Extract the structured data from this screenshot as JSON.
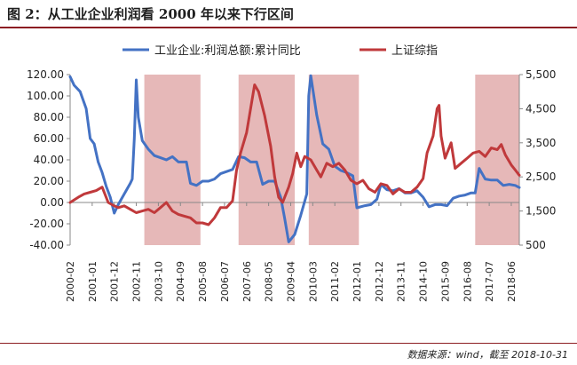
{
  "header": {
    "title": "图 2：从工业企业利润看 2000 年以来下行区间"
  },
  "footer": {
    "source": "数据来源：wind，截至 2018-10-31"
  },
  "colors": {
    "series1": "#4472c4",
    "series2": "#c0393b",
    "shade": "#e6b8b8",
    "rule": "#8c1d22"
  },
  "chart_data": {
    "type": "line",
    "title": "从工业企业利润看 2000 年以来下行区间",
    "x_axis": {
      "start": "2000-02",
      "end": "2018-10",
      "tick_labels": [
        "2000-02",
        "2001-01",
        "2001-12",
        "2002-11",
        "2003-10",
        "2004-09",
        "2005-08",
        "2006-07",
        "2007-06",
        "2008-05",
        "2009-04",
        "2010-03",
        "2011-02",
        "2012-01",
        "2012-12",
        "2013-11",
        "2014-10",
        "2015-09",
        "2016-08",
        "2017-07",
        "2018-06"
      ]
    },
    "y_left": {
      "min": -40,
      "max": 120,
      "step": 20,
      "tick_labels": [
        "-40.00",
        "-20.00",
        "0.00",
        "20.00",
        "40.00",
        "60.00",
        "80.00",
        "100.00",
        "120.00"
      ]
    },
    "y_right": {
      "min": 500,
      "max": 5500,
      "step": 1000,
      "tick_labels": [
        "500",
        "1,500",
        "2,500",
        "3,500",
        "4,500",
        "5,500"
      ]
    },
    "shaded_periods": [
      {
        "start": "2003-03",
        "end": "2005-07"
      },
      {
        "start": "2007-02",
        "end": "2009-06"
      },
      {
        "start": "2010-01",
        "end": "2012-02"
      },
      {
        "start": "2016-12",
        "end": "2018-10"
      }
    ],
    "series": [
      {
        "name": "工业企业:利润总额:累计同比",
        "axis": "left",
        "points": [
          [
            "2000-02",
            118
          ],
          [
            "2000-04",
            110
          ],
          [
            "2000-07",
            104
          ],
          [
            "2000-10",
            88
          ],
          [
            "2000-12",
            60
          ],
          [
            "2001-02",
            55
          ],
          [
            "2001-04",
            38
          ],
          [
            "2001-06",
            28
          ],
          [
            "2001-08",
            15
          ],
          [
            "2001-10",
            5
          ],
          [
            "2001-12",
            -10
          ],
          [
            "2002-02",
            -2
          ],
          [
            "2002-05",
            8
          ],
          [
            "2002-08",
            18
          ],
          [
            "2002-09",
            22
          ],
          [
            "2002-10",
            60
          ],
          [
            "2002-11",
            115
          ],
          [
            "2002-12",
            80
          ],
          [
            "2003-02",
            58
          ],
          [
            "2003-05",
            50
          ],
          [
            "2003-08",
            44
          ],
          [
            "2003-11",
            42
          ],
          [
            "2004-02",
            40
          ],
          [
            "2004-05",
            43
          ],
          [
            "2004-08",
            38
          ],
          [
            "2004-10",
            38
          ],
          [
            "2004-12",
            38
          ],
          [
            "2005-02",
            18
          ],
          [
            "2005-05",
            16
          ],
          [
            "2005-08",
            20
          ],
          [
            "2005-11",
            20
          ],
          [
            "2006-02",
            22
          ],
          [
            "2006-05",
            27
          ],
          [
            "2006-08",
            29
          ],
          [
            "2006-11",
            31
          ],
          [
            "2007-02",
            43
          ],
          [
            "2007-05",
            42
          ],
          [
            "2007-08",
            38
          ],
          [
            "2007-11",
            38
          ],
          [
            "2008-02",
            17
          ],
          [
            "2008-05",
            20
          ],
          [
            "2008-08",
            20
          ],
          [
            "2008-11",
            5
          ],
          [
            "2009-01",
            -15
          ],
          [
            "2009-03",
            -37
          ],
          [
            "2009-06",
            -30
          ],
          [
            "2009-09",
            -12
          ],
          [
            "2009-12",
            8
          ],
          [
            "2010-01",
            100
          ],
          [
            "2010-02",
            119
          ],
          [
            "2010-05",
            82
          ],
          [
            "2010-08",
            55
          ],
          [
            "2010-11",
            50
          ],
          [
            "2011-02",
            34
          ],
          [
            "2011-05",
            30
          ],
          [
            "2011-08",
            28
          ],
          [
            "2011-11",
            25
          ],
          [
            "2012-01",
            -5
          ],
          [
            "2012-05",
            -3
          ],
          [
            "2012-08",
            -2
          ],
          [
            "2012-11",
            3
          ],
          [
            "2013-01",
            17
          ],
          [
            "2013-04",
            12
          ],
          [
            "2013-07",
            11
          ],
          [
            "2013-10",
            13
          ],
          [
            "2014-01",
            9
          ],
          [
            "2014-04",
            9
          ],
          [
            "2014-07",
            11
          ],
          [
            "2014-10",
            5
          ],
          [
            "2015-01",
            -4
          ],
          [
            "2015-04",
            -2
          ],
          [
            "2015-07",
            -2
          ],
          [
            "2015-10",
            -3
          ],
          [
            "2016-01",
            4
          ],
          [
            "2016-04",
            6
          ],
          [
            "2016-07",
            7
          ],
          [
            "2016-10",
            9
          ],
          [
            "2016-12",
            9
          ],
          [
            "2017-02",
            32
          ],
          [
            "2017-05",
            22
          ],
          [
            "2017-08",
            21
          ],
          [
            "2017-11",
            21
          ],
          [
            "2018-02",
            16
          ],
          [
            "2018-05",
            17
          ],
          [
            "2018-08",
            16
          ],
          [
            "2018-10",
            14
          ]
        ]
      },
      {
        "name": "上证综指",
        "axis": "right",
        "points": [
          [
            "2000-02",
            1750
          ],
          [
            "2000-06",
            1900
          ],
          [
            "2000-09",
            2000
          ],
          [
            "2000-12",
            2050
          ],
          [
            "2001-03",
            2100
          ],
          [
            "2001-06",
            2200
          ],
          [
            "2001-09",
            1750
          ],
          [
            "2001-12",
            1650
          ],
          [
            "2002-02",
            1600
          ],
          [
            "2002-05",
            1650
          ],
          [
            "2002-08",
            1550
          ],
          [
            "2002-11",
            1450
          ],
          [
            "2003-02",
            1500
          ],
          [
            "2003-05",
            1550
          ],
          [
            "2003-08",
            1450
          ],
          [
            "2003-11",
            1600
          ],
          [
            "2004-02",
            1750
          ],
          [
            "2004-05",
            1500
          ],
          [
            "2004-08",
            1400
          ],
          [
            "2004-11",
            1350
          ],
          [
            "2005-02",
            1300
          ],
          [
            "2005-05",
            1150
          ],
          [
            "2005-08",
            1150
          ],
          [
            "2005-11",
            1100
          ],
          [
            "2006-02",
            1300
          ],
          [
            "2006-05",
            1600
          ],
          [
            "2006-08",
            1600
          ],
          [
            "2006-11",
            1800
          ],
          [
            "2007-01",
            2700
          ],
          [
            "2007-03",
            3200
          ],
          [
            "2007-06",
            3800
          ],
          [
            "2007-08",
            4500
          ],
          [
            "2007-10",
            5200
          ],
          [
            "2007-12",
            5000
          ],
          [
            "2008-03",
            4300
          ],
          [
            "2008-06",
            3400
          ],
          [
            "2008-08",
            2500
          ],
          [
            "2008-10",
            1900
          ],
          [
            "2008-12",
            1750
          ],
          [
            "2009-03",
            2200
          ],
          [
            "2009-05",
            2600
          ],
          [
            "2009-07",
            3200
          ],
          [
            "2009-09",
            2800
          ],
          [
            "2009-11",
            3100
          ],
          [
            "2010-02",
            3000
          ],
          [
            "2010-05",
            2700
          ],
          [
            "2010-07",
            2500
          ],
          [
            "2010-10",
            2900
          ],
          [
            "2011-01",
            2800
          ],
          [
            "2011-04",
            2900
          ],
          [
            "2011-07",
            2700
          ],
          [
            "2011-10",
            2400
          ],
          [
            "2012-01",
            2300
          ],
          [
            "2012-04",
            2400
          ],
          [
            "2012-07",
            2150
          ],
          [
            "2012-10",
            2050
          ],
          [
            "2013-01",
            2300
          ],
          [
            "2013-04",
            2250
          ],
          [
            "2013-07",
            2000
          ],
          [
            "2013-10",
            2150
          ],
          [
            "2014-01",
            2050
          ],
          [
            "2014-04",
            2050
          ],
          [
            "2014-07",
            2200
          ],
          [
            "2014-10",
            2450
          ],
          [
            "2014-12",
            3200
          ],
          [
            "2015-03",
            3700
          ],
          [
            "2015-05",
            4500
          ],
          [
            "2015-06",
            4600
          ],
          [
            "2015-07",
            3700
          ],
          [
            "2015-09",
            3050
          ],
          [
            "2015-12",
            3500
          ],
          [
            "2016-02",
            2750
          ],
          [
            "2016-05",
            2900
          ],
          [
            "2016-08",
            3050
          ],
          [
            "2016-11",
            3200
          ],
          [
            "2017-02",
            3250
          ],
          [
            "2017-05",
            3100
          ],
          [
            "2017-08",
            3350
          ],
          [
            "2017-11",
            3300
          ],
          [
            "2018-01",
            3450
          ],
          [
            "2018-03",
            3150
          ],
          [
            "2018-06",
            2850
          ],
          [
            "2018-08",
            2700
          ],
          [
            "2018-10",
            2550
          ]
        ]
      }
    ],
    "legend": [
      "工业企业:利润总额:累计同比",
      "上证综指"
    ],
    "legend_position": "top-center"
  }
}
